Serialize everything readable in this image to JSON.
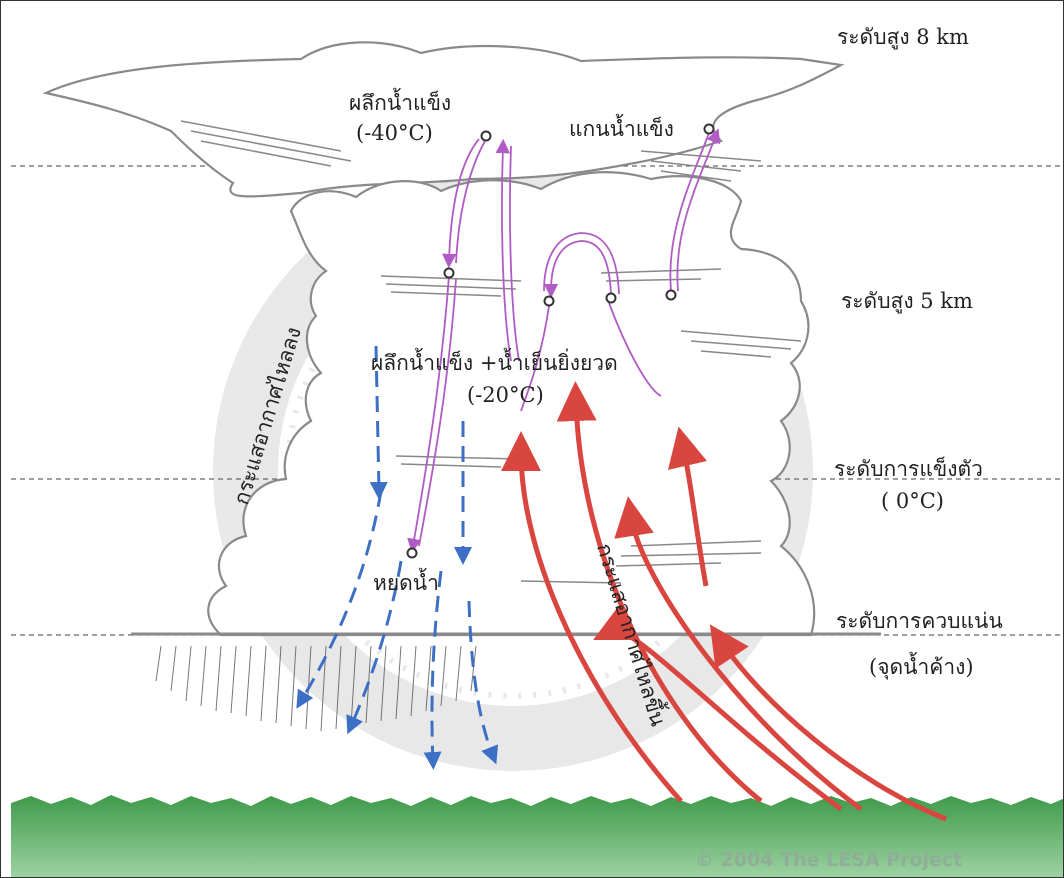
{
  "levels": {
    "top": "ระดับสูง 8 km",
    "mid": "ระดับสูง 5 km",
    "freeze": "ระดับการแข็งตัว",
    "freeze_temp": "( 0°C)",
    "condense": "ระดับการควบแน่น",
    "dew": "(จุดน้ำค้าง)"
  },
  "labels": {
    "ice_crystal": "ผลึกน้ำแข็ง",
    "ice_temp": "(-40°C)",
    "ice_core": "แกนน้ำแข็ง",
    "mixed": "ผลึกน้ำแข็ง +น้ำเย็นยิ่งยวด",
    "mixed_temp": "(-20°C)",
    "droplet": "หยดน้ำ",
    "downdraft": "กระแสอากาศไหลลง",
    "updraft": "กระแสอากาศไหลขึ้น"
  },
  "copyright": "© 2004 The LESA Project",
  "colors": {
    "updraft": "#d9463f",
    "downdraft": "#3d6fc4",
    "ice_path": "#b05cc4",
    "ground": "#5aaa5e",
    "cloud_outline": "#8a8a8a"
  }
}
